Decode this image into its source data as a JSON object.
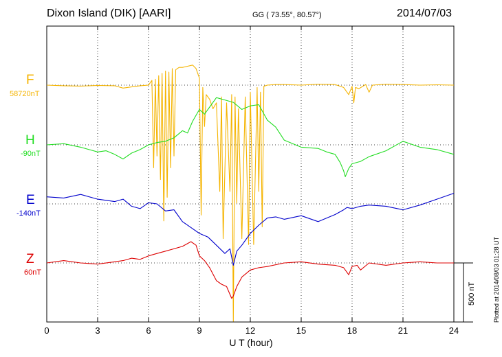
{
  "header": {
    "station": "Dixon Island (DIK)  [AARI]",
    "coords": "GG ( 73.55°,  80.57°)",
    "date": "2014/07/03"
  },
  "channels": [
    {
      "id": "F",
      "label": "F",
      "base": "58720nT",
      "color": "#f5b400"
    },
    {
      "id": "H",
      "label": "H",
      "base": "-90nT",
      "color": "#22dd22"
    },
    {
      "id": "E",
      "label": "E",
      "base": "-140nT",
      "color": "#0000cc"
    },
    {
      "id": "Z",
      "label": "Z",
      "base": "60nT",
      "color": "#dd0000"
    }
  ],
  "x_ticks": [
    "0",
    "3",
    "6",
    "9",
    "12",
    "15",
    "18",
    "21",
    "24"
  ],
  "scale_label": "500 nT",
  "plotted_note": "Plotted at 2014/08/03 01:28 UT",
  "chart_data": {
    "type": "line",
    "title": "Dixon Island (DIK)  [AARI]",
    "xlabel": "U T (hour)",
    "ylabel": "",
    "xlim": [
      0,
      24
    ],
    "x_ticks": [
      0,
      3,
      6,
      9,
      12,
      15,
      18,
      21,
      24
    ],
    "grid": true,
    "grid_style": "dotted, vertical every 3 h, horizontal at each channel baseline",
    "scale_bar_nT": 500,
    "series": [
      {
        "name": "F",
        "baseline_label": "58720nT",
        "color": "#f5b400",
        "x": [
          0,
          1,
          2,
          3,
          4,
          4.5,
          5,
          5.5,
          6,
          6.2,
          6.3,
          6.4,
          6.5,
          6.6,
          6.7,
          6.8,
          6.9,
          7.0,
          7.1,
          7.2,
          7.3,
          7.4,
          7.5,
          7.6,
          7.8,
          8.0,
          8.3,
          8.6,
          8.8,
          8.9,
          9.0,
          9.1,
          9.2,
          9.3,
          9.4,
          9.6,
          9.8,
          10.0,
          10.2,
          10.3,
          10.4,
          10.6,
          10.8,
          10.9,
          11.0,
          11.1,
          11.2,
          11.3,
          11.5,
          11.7,
          11.9,
          12.0,
          12.2,
          12.4,
          12.5,
          12.6,
          12.7,
          12.8,
          13.0,
          13.5,
          14,
          15,
          16,
          17,
          17.5,
          17.8,
          18.0,
          18.1,
          18.2,
          18.4,
          18.8,
          19.0,
          19.2,
          20,
          21,
          22,
          23,
          24
        ],
        "y": [
          0,
          -5,
          -8,
          -3,
          -5,
          -25,
          -15,
          -5,
          0,
          40,
          -700,
          50,
          -600,
          80,
          -800,
          100,
          -1150,
          120,
          -950,
          110,
          -700,
          140,
          -600,
          130,
          150,
          150,
          160,
          170,
          140,
          100,
          60,
          -1100,
          -20,
          -350,
          -80,
          -120,
          -200,
          -150,
          -900,
          -100,
          -1300,
          -150,
          -900,
          -80,
          -2200,
          -100,
          -1000,
          -200,
          -1300,
          -100,
          -1350,
          -60,
          -1350,
          -20,
          -900,
          -60,
          -1200,
          -10,
          0,
          5,
          5,
          0,
          8,
          5,
          -20,
          -80,
          -10,
          -150,
          -20,
          -30,
          5,
          -60,
          0,
          8,
          5,
          0,
          3,
          0
        ]
      },
      {
        "name": "H",
        "baseline_label": "-90nT",
        "color": "#22dd22",
        "x": [
          0,
          1,
          2,
          2.5,
          3,
          3.5,
          4,
          4.5,
          5,
          5.5,
          6,
          6.5,
          7,
          7.5,
          8,
          8.3,
          8.6,
          9,
          9.3,
          9.6,
          10,
          10.5,
          11,
          11.5,
          12,
          12.5,
          13,
          13.5,
          14,
          15,
          16,
          16.5,
          17,
          17.3,
          17.5,
          17.6,
          17.8,
          18,
          18.5,
          19,
          20,
          21,
          22,
          23,
          24
        ],
        "y": [
          0,
          10,
          -20,
          -40,
          -60,
          -50,
          -80,
          -120,
          -70,
          -40,
          0,
          20,
          30,
          60,
          120,
          100,
          200,
          300,
          260,
          320,
          400,
          380,
          360,
          300,
          330,
          340,
          210,
          150,
          40,
          -20,
          -30,
          -60,
          -80,
          -150,
          -220,
          -270,
          -200,
          -160,
          -140,
          -100,
          -50,
          30,
          -20,
          -40,
          -80
        ]
      },
      {
        "name": "E",
        "baseline_label": "-140nT",
        "color": "#0000cc",
        "x": [
          0,
          1,
          2,
          3,
          4,
          4.5,
          5,
          5.5,
          6,
          6.5,
          7,
          7.5,
          8,
          8.5,
          9,
          9.5,
          10,
          10.5,
          10.8,
          11,
          11.2,
          11.5,
          12,
          12.5,
          13,
          13.5,
          14,
          15,
          16,
          17,
          17.5,
          17.7,
          18,
          18.5,
          19,
          20,
          21,
          22,
          23,
          24
        ],
        "y": [
          60,
          50,
          80,
          40,
          20,
          40,
          -20,
          -40,
          10,
          0,
          -60,
          -50,
          -150,
          -200,
          -250,
          -280,
          -350,
          -420,
          -380,
          -520,
          -400,
          -350,
          -250,
          -180,
          -120,
          -110,
          -130,
          -100,
          -150,
          -90,
          -50,
          -30,
          -40,
          -20,
          -10,
          -20,
          -50,
          -10,
          40,
          90
        ]
      },
      {
        "name": "Z",
        "baseline_label": "60nT",
        "color": "#dd0000",
        "x": [
          0,
          1,
          2,
          3,
          4,
          4.5,
          5,
          5.5,
          6,
          6.5,
          7,
          7.5,
          8,
          8.5,
          8.8,
          9,
          9.3,
          9.6,
          10,
          10.3,
          10.6,
          10.9,
          11,
          11.2,
          11.5,
          12,
          12.5,
          13,
          14,
          15,
          16,
          17,
          17.5,
          17.8,
          18,
          18.3,
          18.5,
          19,
          20,
          21,
          22,
          23,
          24
        ],
        "y": [
          0,
          20,
          0,
          -10,
          10,
          20,
          40,
          30,
          60,
          80,
          100,
          120,
          140,
          180,
          150,
          60,
          20,
          -40,
          -150,
          -180,
          -200,
          -300,
          -280,
          -200,
          -120,
          -60,
          -40,
          -30,
          0,
          10,
          -10,
          -20,
          -40,
          -100,
          -30,
          -20,
          -60,
          0,
          -20,
          0,
          10,
          0,
          0
        ]
      }
    ]
  }
}
